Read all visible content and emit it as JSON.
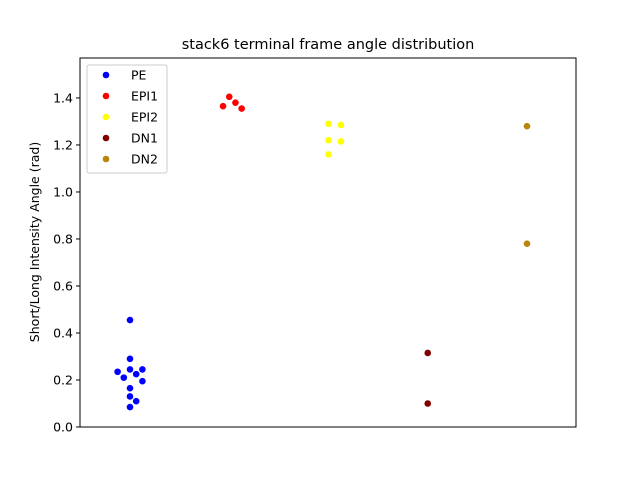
{
  "chart_data": {
    "type": "scatter",
    "title": "stack6 terminal frame angle distribution",
    "xlabel": "",
    "ylabel": "Short/Long Intensity Angle (rad)",
    "ylim": [
      0.0,
      1.57
    ],
    "yticks": [
      0.0,
      0.2,
      0.4,
      0.6,
      0.8,
      1.0,
      1.2,
      1.4
    ],
    "ytick_labels": [
      "0.0",
      "0.2",
      "0.4",
      "0.6",
      "0.8",
      "1.0",
      "1.2",
      "1.4"
    ],
    "grid": false,
    "legend_position": "top-left",
    "categories": [
      "PE",
      "EPI1",
      "EPI2",
      "DN1",
      "DN2"
    ],
    "series": [
      {
        "name": "PE",
        "color": "#0000ff",
        "values": [
          0.455,
          0.29,
          0.245,
          0.245,
          0.235,
          0.225,
          0.21,
          0.195,
          0.165,
          0.13,
          0.11,
          0.085
        ]
      },
      {
        "name": "EPI1",
        "color": "#ff0000",
        "values": [
          1.405,
          1.38,
          1.365,
          1.355
        ]
      },
      {
        "name": "EPI2",
        "color": "#ffff00",
        "values": [
          1.29,
          1.285,
          1.22,
          1.215,
          1.16
        ]
      },
      {
        "name": "DN1",
        "color": "#800000",
        "values": [
          0.315,
          0.1
        ]
      },
      {
        "name": "DN2",
        "color": "#b8860b",
        "values": [
          1.28,
          0.78
        ]
      }
    ]
  }
}
